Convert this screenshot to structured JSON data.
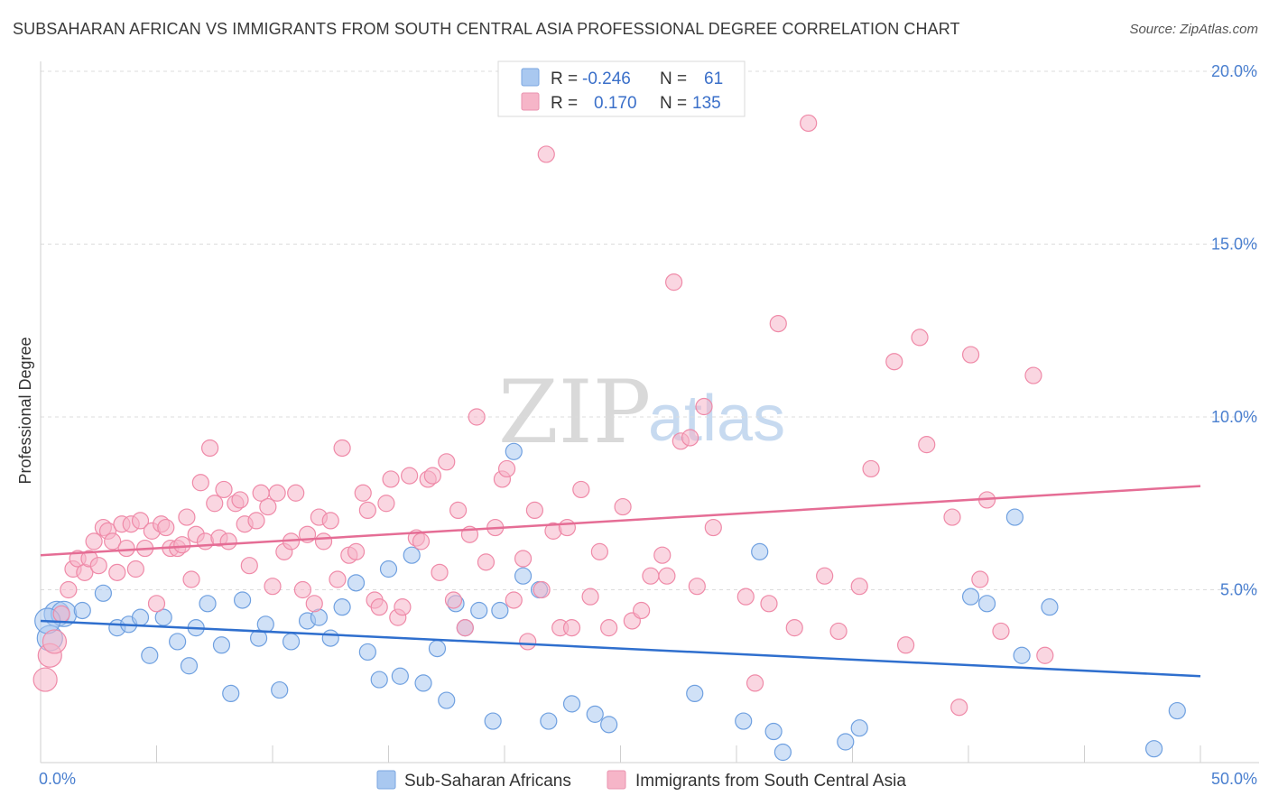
{
  "header": {
    "title": "SUBSAHARAN AFRICAN VS IMMIGRANTS FROM SOUTH CENTRAL ASIA PROFESSIONAL DEGREE CORRELATION CHART",
    "source": "Source: ZipAtlas.com"
  },
  "watermark": {
    "zip": "ZIP",
    "atlas": "atlas"
  },
  "legend": {
    "rows": [
      {
        "r_label": "R =",
        "r_value": "-0.246",
        "n_label": "N =",
        "n_value": "61",
        "color": "#a9c8f0"
      },
      {
        "r_label": "R =",
        "r_value": "0.170",
        "n_label": "N =",
        "n_value": "135",
        "color": "#f6b5c8"
      }
    ]
  },
  "bottom_legend": {
    "items": [
      {
        "label": "Sub-Saharan Africans",
        "color": "#a9c8f0"
      },
      {
        "label": "Immigrants from South Central Asia",
        "color": "#f6b5c8"
      }
    ]
  },
  "chart_data": {
    "type": "scatter",
    "title": "SUBSAHARAN AFRICAN VS IMMIGRANTS FROM SOUTH CENTRAL ASIA PROFESSIONAL DEGREE CORRELATION CHART",
    "xlabel": "",
    "ylabel": "Professional Degree",
    "xlim": [
      0,
      50
    ],
    "ylim": [
      0,
      20.5
    ],
    "x_tick_labels": [
      "0.0%",
      "50.0%"
    ],
    "y_ticks": [
      5,
      10,
      15,
      20
    ],
    "y_tick_labels": [
      "5.0%",
      "10.0%",
      "15.0%",
      "20.0%"
    ],
    "grid": true,
    "legend_position": "top-center",
    "series": [
      {
        "name": "Sub-Saharan Africans",
        "color": "#6fa0e0",
        "fill": "#a9c8f0",
        "trend": {
          "x": [
            0,
            50
          ],
          "y": [
            4.1,
            2.5
          ],
          "color": "#2f6fce"
        },
        "points": [
          [
            0.7,
            4.3
          ],
          [
            1.0,
            4.3
          ],
          [
            1.8,
            4.4
          ],
          [
            2.7,
            4.9
          ],
          [
            3.3,
            3.9
          ],
          [
            3.8,
            4.0
          ],
          [
            4.3,
            4.2
          ],
          [
            4.7,
            3.1
          ],
          [
            5.3,
            4.2
          ],
          [
            5.9,
            3.5
          ],
          [
            6.4,
            2.8
          ],
          [
            6.7,
            3.9
          ],
          [
            7.2,
            4.6
          ],
          [
            7.8,
            3.4
          ],
          [
            8.2,
            2.0
          ],
          [
            8.7,
            4.7
          ],
          [
            9.4,
            3.6
          ],
          [
            9.7,
            4.0
          ],
          [
            10.3,
            2.1
          ],
          [
            10.8,
            3.5
          ],
          [
            11.5,
            4.1
          ],
          [
            12.0,
            4.2
          ],
          [
            12.5,
            3.6
          ],
          [
            13.0,
            4.5
          ],
          [
            13.6,
            5.2
          ],
          [
            14.1,
            3.2
          ],
          [
            14.6,
            2.4
          ],
          [
            15.0,
            5.6
          ],
          [
            15.5,
            2.5
          ],
          [
            16.0,
            6.0
          ],
          [
            16.5,
            2.3
          ],
          [
            17.1,
            3.3
          ],
          [
            17.5,
            1.8
          ],
          [
            17.9,
            4.6
          ],
          [
            18.3,
            3.9
          ],
          [
            18.9,
            4.4
          ],
          [
            19.5,
            1.2
          ],
          [
            19.8,
            4.4
          ],
          [
            20.4,
            9.0
          ],
          [
            20.8,
            5.4
          ],
          [
            21.5,
            5.0
          ],
          [
            21.9,
            1.2
          ],
          [
            22.9,
            1.7
          ],
          [
            23.9,
            1.4
          ],
          [
            24.5,
            1.1
          ],
          [
            28.2,
            2.0
          ],
          [
            30.3,
            1.2
          ],
          [
            31.0,
            6.1
          ],
          [
            31.6,
            0.9
          ],
          [
            32.0,
            0.3
          ],
          [
            34.7,
            0.6
          ],
          [
            35.3,
            1.0
          ],
          [
            40.1,
            4.8
          ],
          [
            40.8,
            4.6
          ],
          [
            42.0,
            7.1
          ],
          [
            42.3,
            3.1
          ],
          [
            43.5,
            4.5
          ],
          [
            48.0,
            0.4
          ],
          [
            49.0,
            1.5
          ],
          [
            0.4,
            3.6
          ],
          [
            0.3,
            4.1
          ]
        ]
      },
      {
        "name": "Immigrants from South Central Asia",
        "color": "#ef8aa8",
        "fill": "#f6b5c8",
        "trend": {
          "x": [
            0,
            50
          ],
          "y": [
            6.0,
            8.0
          ],
          "color": "#e56d95"
        },
        "points": [
          [
            0.2,
            2.4
          ],
          [
            0.4,
            3.1
          ],
          [
            0.6,
            3.5
          ],
          [
            0.9,
            4.3
          ],
          [
            1.2,
            5.0
          ],
          [
            1.4,
            5.6
          ],
          [
            1.6,
            5.9
          ],
          [
            1.9,
            5.5
          ],
          [
            2.1,
            5.9
          ],
          [
            2.3,
            6.4
          ],
          [
            2.5,
            5.7
          ],
          [
            2.7,
            6.8
          ],
          [
            2.9,
            6.7
          ],
          [
            3.1,
            6.4
          ],
          [
            3.3,
            5.5
          ],
          [
            3.5,
            6.9
          ],
          [
            3.7,
            6.2
          ],
          [
            3.9,
            6.9
          ],
          [
            4.1,
            5.6
          ],
          [
            4.3,
            7.0
          ],
          [
            4.5,
            6.2
          ],
          [
            4.8,
            6.7
          ],
          [
            5.0,
            4.6
          ],
          [
            5.2,
            6.9
          ],
          [
            5.4,
            6.8
          ],
          [
            5.6,
            6.2
          ],
          [
            5.9,
            6.2
          ],
          [
            6.1,
            6.3
          ],
          [
            6.3,
            7.1
          ],
          [
            6.5,
            5.3
          ],
          [
            6.7,
            6.6
          ],
          [
            6.9,
            8.1
          ],
          [
            7.1,
            6.4
          ],
          [
            7.3,
            9.1
          ],
          [
            7.5,
            7.5
          ],
          [
            7.7,
            6.5
          ],
          [
            7.9,
            7.9
          ],
          [
            8.1,
            6.4
          ],
          [
            8.4,
            7.5
          ],
          [
            8.6,
            7.6
          ],
          [
            8.8,
            6.9
          ],
          [
            9.0,
            5.7
          ],
          [
            9.3,
            7.0
          ],
          [
            9.5,
            7.8
          ],
          [
            9.8,
            7.4
          ],
          [
            10.0,
            5.1
          ],
          [
            10.2,
            7.8
          ],
          [
            10.5,
            6.1
          ],
          [
            10.8,
            6.4
          ],
          [
            11.0,
            7.8
          ],
          [
            11.3,
            5.0
          ],
          [
            11.5,
            6.6
          ],
          [
            11.8,
            4.6
          ],
          [
            12.0,
            7.1
          ],
          [
            12.2,
            6.4
          ],
          [
            12.5,
            7.0
          ],
          [
            12.8,
            5.3
          ],
          [
            13.0,
            9.1
          ],
          [
            13.3,
            6.0
          ],
          [
            13.6,
            6.1
          ],
          [
            13.9,
            7.8
          ],
          [
            14.1,
            7.3
          ],
          [
            14.4,
            4.7
          ],
          [
            14.6,
            4.5
          ],
          [
            14.9,
            7.5
          ],
          [
            15.1,
            8.2
          ],
          [
            15.4,
            4.2
          ],
          [
            15.6,
            4.5
          ],
          [
            15.9,
            8.3
          ],
          [
            16.2,
            6.5
          ],
          [
            16.4,
            6.4
          ],
          [
            16.7,
            8.2
          ],
          [
            16.9,
            8.3
          ],
          [
            17.2,
            5.5
          ],
          [
            17.5,
            8.7
          ],
          [
            17.8,
            4.7
          ],
          [
            18.0,
            7.3
          ],
          [
            18.3,
            3.9
          ],
          [
            18.5,
            6.6
          ],
          [
            18.8,
            10.0
          ],
          [
            19.2,
            5.8
          ],
          [
            19.6,
            6.8
          ],
          [
            19.9,
            8.2
          ],
          [
            20.1,
            8.5
          ],
          [
            20.4,
            4.7
          ],
          [
            20.8,
            5.9
          ],
          [
            21.0,
            3.5
          ],
          [
            21.3,
            7.3
          ],
          [
            21.6,
            5.0
          ],
          [
            21.8,
            17.6
          ],
          [
            22.1,
            6.7
          ],
          [
            22.4,
            3.9
          ],
          [
            22.7,
            6.8
          ],
          [
            22.9,
            3.9
          ],
          [
            23.3,
            7.9
          ],
          [
            23.7,
            4.8
          ],
          [
            24.1,
            6.1
          ],
          [
            24.5,
            3.9
          ],
          [
            25.1,
            7.4
          ],
          [
            25.5,
            4.1
          ],
          [
            25.9,
            4.4
          ],
          [
            26.3,
            5.4
          ],
          [
            26.8,
            6.0
          ],
          [
            27.0,
            5.4
          ],
          [
            27.3,
            13.9
          ],
          [
            27.6,
            9.3
          ],
          [
            28.0,
            9.4
          ],
          [
            28.3,
            5.1
          ],
          [
            28.6,
            10.3
          ],
          [
            29.0,
            6.8
          ],
          [
            30.4,
            4.8
          ],
          [
            30.8,
            2.3
          ],
          [
            31.4,
            4.6
          ],
          [
            31.8,
            12.7
          ],
          [
            32.5,
            3.9
          ],
          [
            33.1,
            18.5
          ],
          [
            33.8,
            5.4
          ],
          [
            34.4,
            3.8
          ],
          [
            35.3,
            5.1
          ],
          [
            35.8,
            8.5
          ],
          [
            36.8,
            11.6
          ],
          [
            37.3,
            3.4
          ],
          [
            37.9,
            12.3
          ],
          [
            38.2,
            9.2
          ],
          [
            39.3,
            7.1
          ],
          [
            39.6,
            1.6
          ],
          [
            40.1,
            11.8
          ],
          [
            40.5,
            5.3
          ],
          [
            40.8,
            7.6
          ],
          [
            41.4,
            3.8
          ],
          [
            42.8,
            11.2
          ],
          [
            43.3,
            3.1
          ]
        ]
      }
    ]
  }
}
